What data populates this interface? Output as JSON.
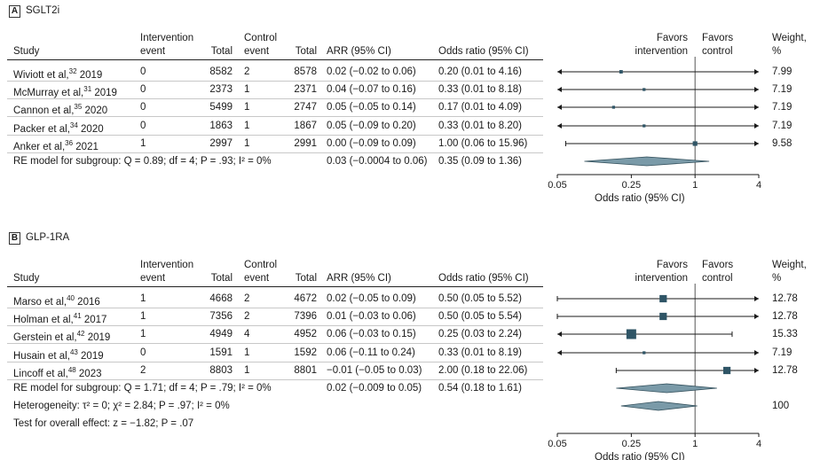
{
  "headers": {
    "study": "Study",
    "int_event": [
      "Intervention",
      "event"
    ],
    "total": "Total",
    "ctrl_event": [
      "Control",
      "event"
    ],
    "total2": "Total",
    "arr": "ARR (95% CI)",
    "or": "Odds ratio (95% CI)",
    "favors_int": [
      "Favors",
      "intervention"
    ],
    "favors_ctrl": [
      "Favors",
      "control"
    ],
    "weight": [
      "Weight,",
      "%"
    ]
  },
  "panels": [
    {
      "letter": "A",
      "title": "SGLT2i",
      "rows": [
        {
          "study": "Wiviott et al,",
          "ref": "32",
          "year": " 2019",
          "int_event": "0",
          "int_total": "8582",
          "ctrl_event": "2",
          "ctrl_total": "8578",
          "arr": "0.02 (−0.02 to 0.06)",
          "or": "0.20 (0.01 to 4.16)",
          "weight": "7.99"
        },
        {
          "study": "McMurray et al,",
          "ref": "31",
          "year": " 2019",
          "int_event": "0",
          "int_total": "2373",
          "ctrl_event": "1",
          "ctrl_total": "2371",
          "arr": "0.04 (−0.07 to 0.16)",
          "or": "0.33 (0.01 to 8.18)",
          "weight": "7.19"
        },
        {
          "study": "Cannon et al,",
          "ref": "35",
          "year": " 2020",
          "int_event": "0",
          "int_total": "5499",
          "ctrl_event": "1",
          "ctrl_total": "2747",
          "arr": "0.05 (−0.05 to 0.14)",
          "or": "0.17 (0.01 to 4.09)",
          "weight": "7.19"
        },
        {
          "study": "Packer et al,",
          "ref": "34",
          "year": " 2020",
          "int_event": "0",
          "int_total": "1863",
          "ctrl_event": "1",
          "ctrl_total": "1867",
          "arr": "0.05 (−0.09 to 0.20)",
          "or": "0.33 (0.01 to 8.20)",
          "weight": "7.19"
        },
        {
          "study": "Anker et al,",
          "ref": "36",
          "year": " 2021",
          "int_event": "1",
          "int_total": "2997",
          "ctrl_event": "1",
          "ctrl_total": "2991",
          "arr": "0.00 (−0.09 to 0.09)",
          "or": "1.00 (0.06 to 15.96)",
          "weight": "9.58"
        }
      ],
      "summary": {
        "label": "RE model for subgroup: Q = 0.89; df = 4; P = .93; I² = 0%",
        "arr": "0.03 (−0.0004 to 0.06)",
        "or": "0.35 (0.09 to 1.36)"
      },
      "extra": []
    },
    {
      "letter": "B",
      "title": "GLP-1RA",
      "rows": [
        {
          "study": "Marso et al,",
          "ref": "40",
          "year": " 2016",
          "int_event": "1",
          "int_total": "4668",
          "ctrl_event": "2",
          "ctrl_total": "4672",
          "arr": "0.02 (−0.05 to 0.09)",
          "or": "0.50 (0.05 to 5.52)",
          "weight": "12.78"
        },
        {
          "study": "Holman et al,",
          "ref": "41",
          "year": " 2017",
          "int_event": "1",
          "int_total": "7356",
          "ctrl_event": "2",
          "ctrl_total": "7396",
          "arr": "0.01 (−0.03 to 0.06)",
          "or": "0.50 (0.05 to 5.54)",
          "weight": "12.78"
        },
        {
          "study": "Gerstein et al,",
          "ref": "42",
          "year": " 2019",
          "int_event": "1",
          "int_total": "4949",
          "ctrl_event": "4",
          "ctrl_total": "4952",
          "arr": "0.06 (−0.03 to 0.15)",
          "or": "0.25 (0.03 to 2.24)",
          "weight": "15.33"
        },
        {
          "study": "Husain et al,",
          "ref": "43",
          "year": " 2019",
          "int_event": "0",
          "int_total": "1591",
          "ctrl_event": "1",
          "ctrl_total": "1592",
          "arr": "0.06 (−0.11 to 0.24)",
          "or": "0.33 (0.01 to 8.19)",
          "weight": "7.19"
        },
        {
          "study": "Lincoff et al,",
          "ref": "48",
          "year": " 2023",
          "int_event": "2",
          "int_total": "8803",
          "ctrl_event": "1",
          "ctrl_total": "8801",
          "arr": "−0.01 (−0.05 to 0.03)",
          "or": "2.00 (0.18 to 22.06)",
          "weight": "12.78"
        }
      ],
      "summary": {
        "label": "RE model for subgroup: Q = 1.71; df = 4; P = .79; I² = 0%",
        "arr": "0.02 (−0.009 to 0.05)",
        "or": "0.54 (0.18 to 1.61)"
      },
      "extra": [
        {
          "label": "Heterogeneity: τ² = 0; χ² = 2.84; P = .97; I² = 0%",
          "weight": "100"
        },
        {
          "label": "Test for overall effect: z = −1.82; P = .07",
          "weight": ""
        }
      ]
    }
  ],
  "chart_data": [
    {
      "type": "forest",
      "panel": "A",
      "xlabel": "Odds ratio (95% CI)",
      "xscale": "log",
      "xlim": [
        0.05,
        4
      ],
      "xticks": [
        {
          "v": 0.05,
          "label": "0.05"
        },
        {
          "v": 0.25,
          "label": "0.25"
        },
        {
          "v": 1,
          "label": "1"
        },
        {
          "v": 4,
          "label": "4"
        }
      ],
      "reference_line": 1,
      "studies": [
        {
          "or": 0.2,
          "lo": 0.01,
          "hi": 4.16,
          "weight": 7.99
        },
        {
          "or": 0.33,
          "lo": 0.01,
          "hi": 8.18,
          "weight": 7.19
        },
        {
          "or": 0.17,
          "lo": 0.01,
          "hi": 4.09,
          "weight": 7.19
        },
        {
          "or": 0.33,
          "lo": 0.01,
          "hi": 8.2,
          "weight": 7.19
        },
        {
          "or": 1.0,
          "lo": 0.06,
          "hi": 15.96,
          "weight": 9.58
        }
      ],
      "pooled": [
        {
          "or": 0.35,
          "lo": 0.09,
          "hi": 1.36
        }
      ]
    },
    {
      "type": "forest",
      "panel": "B",
      "xlabel": "Odds ratio (95% CI)",
      "xscale": "log",
      "xlim": [
        0.05,
        4
      ],
      "xticks": [
        {
          "v": 0.05,
          "label": "0.05"
        },
        {
          "v": 0.25,
          "label": "0.25"
        },
        {
          "v": 1,
          "label": "1"
        },
        {
          "v": 4,
          "label": "4"
        }
      ],
      "reference_line": 1,
      "studies": [
        {
          "or": 0.5,
          "lo": 0.05,
          "hi": 5.52,
          "weight": 12.78
        },
        {
          "or": 0.5,
          "lo": 0.05,
          "hi": 5.54,
          "weight": 12.78
        },
        {
          "or": 0.25,
          "lo": 0.03,
          "hi": 2.24,
          "weight": 15.33
        },
        {
          "or": 0.33,
          "lo": 0.01,
          "hi": 8.19,
          "weight": 7.19
        },
        {
          "or": 2.0,
          "lo": 0.18,
          "hi": 22.06,
          "weight": 12.78
        }
      ],
      "pooled": [
        {
          "or": 0.54,
          "lo": 0.18,
          "hi": 1.61
        },
        {
          "or": 0.45,
          "lo": 0.2,
          "hi": 1.05
        }
      ]
    }
  ],
  "colors": {
    "marker": "#2f5566",
    "diamond": "#7a9aa8",
    "line": "#1a1a1a"
  }
}
